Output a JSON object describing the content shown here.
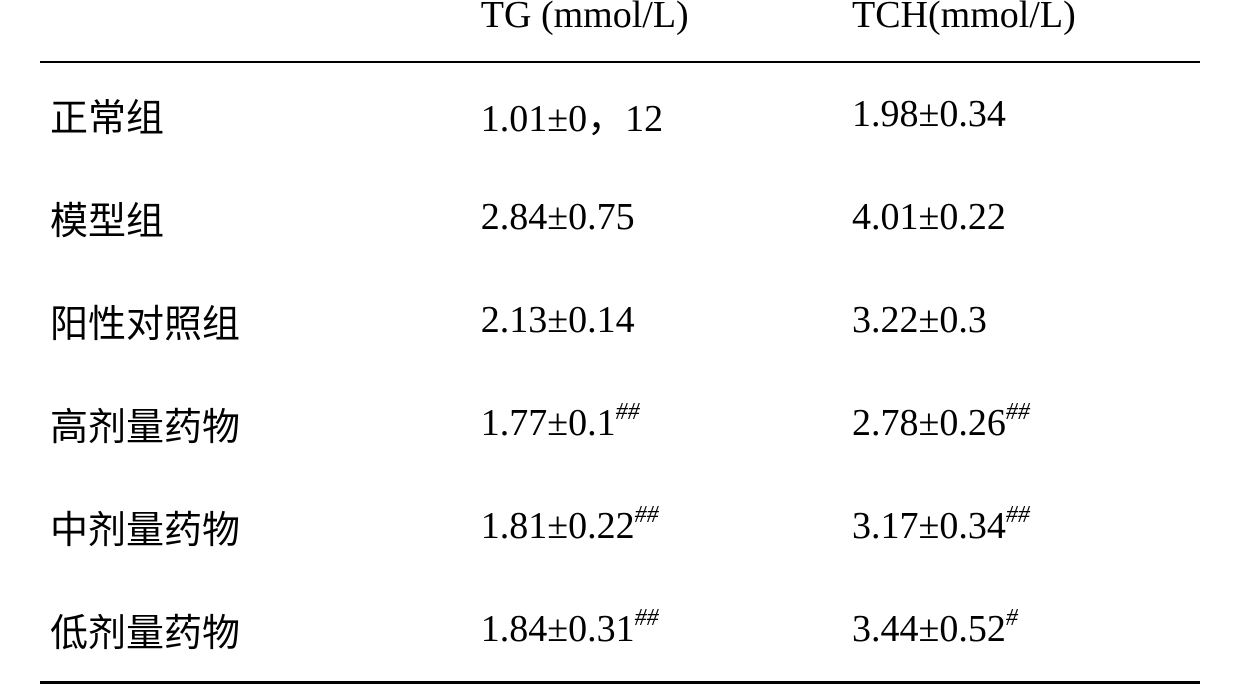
{
  "table": {
    "type": "table",
    "columns": {
      "group": "",
      "tg": "TG (mmol/L)",
      "tch": "TCH(mmol/L)"
    },
    "rows": [
      {
        "group": "正常组",
        "tg": "1.01±0，12",
        "tg_sup": "",
        "tch": "1.98±0.34",
        "tch_sup": ""
      },
      {
        "group": "模型组",
        "tg": "2.84±0.75",
        "tg_sup": "",
        "tch": "4.01±0.22",
        "tch_sup": ""
      },
      {
        "group": "阳性对照组",
        "tg": "2.13±0.14",
        "tg_sup": "",
        "tch": "3.22±0.3",
        "tch_sup": ""
      },
      {
        "group": "高剂量药物",
        "tg": "1.77±0.1",
        "tg_sup": "##",
        "tch": "2.78±0.26",
        "tch_sup": "##"
      },
      {
        "group": "中剂量药物",
        "tg": "1.81±0.22",
        "tg_sup": "##",
        "tch": "3.17±0.34",
        "tch_sup": "##"
      },
      {
        "group": "低剂量药物",
        "tg": "1.84±0.31",
        "tg_sup": "##",
        "tch": "3.44±0.52",
        "tch_sup": "#"
      }
    ],
    "style": {
      "font_size": 38,
      "sup_font_size": 24,
      "text_color": "#000000",
      "background_color": "#ffffff",
      "rule_color": "#000000",
      "top_rule_width": 3,
      "mid_rule_width": 2,
      "bottom_rule_width": 3,
      "row_padding_v": 24,
      "col_widths_pct": [
        38,
        32,
        30
      ]
    }
  }
}
